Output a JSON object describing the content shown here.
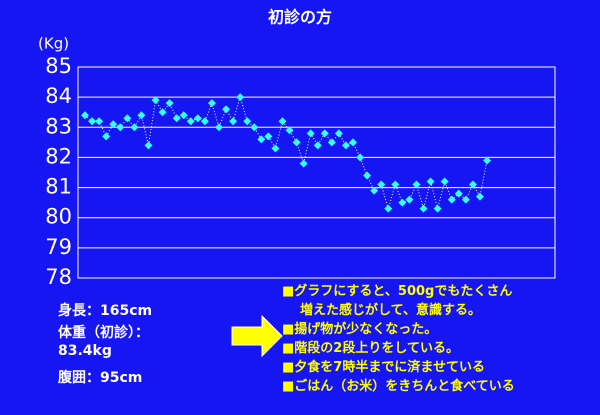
{
  "chart_data": {
    "type": "line",
    "title": "初診の方",
    "y_label": "(Kg)",
    "values": [
      83.4,
      83.2,
      83.2,
      82.7,
      83.1,
      83.0,
      83.3,
      83.0,
      83.4,
      82.4,
      83.9,
      83.5,
      83.8,
      83.3,
      83.4,
      83.2,
      83.3,
      83.2,
      83.8,
      83.0,
      83.6,
      83.2,
      84.0,
      83.2,
      83.0,
      82.6,
      82.7,
      82.3,
      83.2,
      82.9,
      82.5,
      81.8,
      82.8,
      82.4,
      82.8,
      82.5,
      82.8,
      82.4,
      82.5,
      82.0,
      81.4,
      80.9,
      81.1,
      80.3,
      81.1,
      80.5,
      80.6,
      81.1,
      80.3,
      81.2,
      80.3,
      81.2,
      80.6,
      80.8,
      80.6,
      81.1,
      80.7,
      81.9
    ],
    "color": "#33ffff",
    "ylim": [
      78,
      85
    ],
    "yticks": [
      78,
      79,
      80,
      81,
      82,
      83,
      84,
      85
    ],
    "grid": true
  },
  "profile": [
    "身長：165cm",
    "体重（初診）：",
    "83.4kg",
    "腹囲：95cm"
  ],
  "notes": [
    [
      "■グラフにすると、500gでもたくさん",
      "増えた感じがして、意識する。"
    ],
    [
      "■揚げ物が少なくなった。"
    ],
    [
      "■階段の2段上りをしている。"
    ],
    [
      "■夕食を7時半までに済ませている"
    ],
    [
      "■ごはん（お米）をきちんと食べている"
    ]
  ]
}
